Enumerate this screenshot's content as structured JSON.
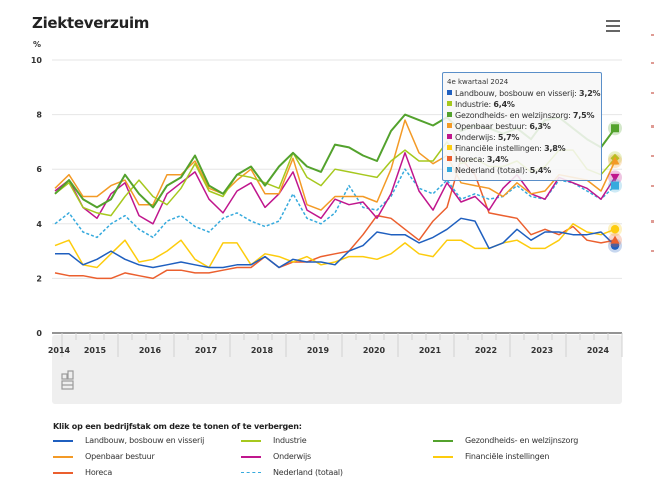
{
  "header": {
    "title": "Ziekteverzuim",
    "menu_icon": "hamburger-menu-icon"
  },
  "chart_data": {
    "type": "line",
    "title": "Ziekteverzuim",
    "ylabel": "%",
    "xlabel": "",
    "ylim": [
      0,
      10
    ],
    "yticks": [
      0,
      2,
      4,
      6,
      8,
      10
    ],
    "ytick_labels": [
      "0",
      "2",
      "4",
      "6",
      "8",
      "10"
    ],
    "xtick_labels": [
      "2014",
      "2015",
      "2016",
      "2017",
      "2018",
      "2019",
      "2020",
      "2021",
      "2022",
      "2023",
      "2024"
    ],
    "x_start": "2014 Q4",
    "x_end": "2024 Q4",
    "x_unit": "kwartaal",
    "grid": true,
    "navigator": true,
    "legend_position": "bottom",
    "series": [
      {
        "name": "Landbouw, bosbouw en visserij",
        "color": "#1f5fbf",
        "dashed": false,
        "marker": "circle",
        "values": [
          2.9,
          2.9,
          2.5,
          2.7,
          3.0,
          2.7,
          2.5,
          2.4,
          2.5,
          2.6,
          2.5,
          2.4,
          2.4,
          2.5,
          2.5,
          2.8,
          2.4,
          2.7,
          2.6,
          2.6,
          2.5,
          3.0,
          3.2,
          3.7,
          3.6,
          3.6,
          3.3,
          3.5,
          3.8,
          4.2,
          4.1,
          3.1,
          3.3,
          3.8,
          3.4,
          3.7,
          3.7,
          3.6,
          3.6,
          3.7,
          3.2
        ]
      },
      {
        "name": "Industrie",
        "color": "#a6c81e",
        "dashed": false,
        "marker": "diamond",
        "values": [
          5.1,
          5.5,
          4.6,
          4.4,
          4.3,
          5.0,
          5.6,
          5.0,
          4.7,
          5.3,
          6.2,
          5.2,
          5.0,
          5.8,
          5.7,
          5.5,
          5.3,
          6.6,
          5.7,
          5.4,
          6.0,
          5.9,
          5.8,
          5.7,
          6.3,
          6.7,
          6.3,
          6.3,
          7.0,
          6.2,
          6.4,
          6.1,
          6.1,
          6.3,
          5.9,
          6.1,
          6.7,
          6.7,
          6.0,
          5.8,
          6.4
        ]
      },
      {
        "name": "Gezondheids- en welzijnszorg",
        "color": "#53a22d",
        "dashed": false,
        "marker": "square",
        "values": [
          5.1,
          5.6,
          4.9,
          4.6,
          4.9,
          5.8,
          5.1,
          4.6,
          5.4,
          5.7,
          6.5,
          5.4,
          5.1,
          5.8,
          6.1,
          5.4,
          6.1,
          6.6,
          6.1,
          5.9,
          6.9,
          6.8,
          6.5,
          6.3,
          7.4,
          8.0,
          7.8,
          7.6,
          7.9,
          7.4,
          7.6,
          7.5,
          7.3,
          7.5,
          7.1,
          7.8,
          7.9,
          7.5,
          7.1,
          6.8,
          7.5
        ]
      },
      {
        "name": "Openbaar bestuur",
        "color": "#f39a26",
        "dashed": false,
        "marker": "triangle-up",
        "values": [
          5.3,
          5.8,
          5.0,
          5.0,
          5.4,
          5.6,
          4.7,
          4.7,
          5.8,
          5.8,
          6.3,
          5.3,
          5.1,
          5.6,
          6.0,
          5.1,
          5.1,
          6.4,
          4.7,
          4.5,
          5.0,
          5.0,
          5.0,
          4.8,
          6.0,
          7.8,
          6.6,
          6.2,
          6.5,
          5.5,
          5.4,
          5.3,
          5.0,
          5.5,
          5.1,
          5.2,
          5.8,
          5.7,
          5.6,
          5.2,
          6.3
        ]
      },
      {
        "name": "Onderwijs",
        "color": "#c0168d",
        "dashed": false,
        "marker": "triangle-down",
        "values": [
          5.2,
          5.6,
          4.6,
          4.2,
          5.1,
          5.5,
          4.3,
          4.0,
          5.1,
          5.5,
          5.9,
          4.9,
          4.4,
          5.2,
          5.5,
          4.6,
          5.1,
          5.9,
          4.5,
          4.2,
          4.9,
          4.7,
          4.8,
          4.2,
          5.1,
          6.6,
          5.2,
          4.5,
          5.5,
          4.8,
          5.0,
          4.5,
          5.3,
          5.8,
          5.1,
          4.9,
          5.7,
          5.5,
          5.3,
          4.9,
          5.7
        ]
      },
      {
        "name": "Financiële instellingen",
        "color": "#fdcc0d",
        "dashed": false,
        "marker": "circle",
        "values": [
          3.2,
          3.4,
          2.5,
          2.4,
          2.9,
          3.4,
          2.6,
          2.7,
          3.0,
          3.4,
          2.7,
          2.4,
          3.3,
          3.3,
          2.5,
          2.9,
          2.8,
          2.6,
          2.8,
          2.5,
          2.6,
          2.8,
          2.8,
          2.7,
          2.9,
          3.3,
          2.9,
          2.8,
          3.4,
          3.4,
          3.1,
          3.1,
          3.3,
          3.4,
          3.1,
          3.1,
          3.4,
          4.0,
          3.7,
          3.6,
          3.8
        ]
      },
      {
        "name": "Horeca",
        "color": "#eb5f2e",
        "dashed": false,
        "marker": "triangle-up",
        "values": [
          2.2,
          2.1,
          2.1,
          2.0,
          2.0,
          2.2,
          2.1,
          2.0,
          2.3,
          2.3,
          2.2,
          2.2,
          2.3,
          2.4,
          2.4,
          2.8,
          2.4,
          2.6,
          2.6,
          2.8,
          2.9,
          3.0,
          3.6,
          4.3,
          4.2,
          3.8,
          3.4,
          4.1,
          4.6,
          6.4,
          5.8,
          4.4,
          4.3,
          4.2,
          3.6,
          3.8,
          3.6,
          3.9,
          3.4,
          3.3,
          3.4
        ]
      },
      {
        "name": "Nederland (totaal)",
        "color": "#36aadd",
        "dashed": true,
        "marker": "square",
        "values": [
          4.0,
          4.4,
          3.7,
          3.5,
          4.0,
          4.3,
          3.8,
          3.5,
          4.1,
          4.3,
          3.9,
          3.7,
          4.2,
          4.4,
          4.1,
          3.9,
          4.1,
          5.1,
          4.2,
          4.0,
          4.4,
          5.4,
          4.6,
          4.5,
          5.0,
          6.0,
          5.3,
          5.1,
          5.6,
          4.9,
          5.1,
          4.9,
          5.0,
          5.4,
          5.0,
          4.9,
          5.6,
          5.5,
          5.2,
          4.9,
          5.4
        ]
      }
    ]
  },
  "tooltip": {
    "header": "4e kwartaal 2024",
    "rows": [
      {
        "label": "Landbouw, bosbouw en visserij",
        "value": "3,2%",
        "color": "#1f5fbf"
      },
      {
        "label": "Industrie",
        "value": "6,4%",
        "color": "#a6c81e"
      },
      {
        "label": "Gezondheids- en welzijnszorg",
        "value": "7,5%",
        "color": "#53a22d"
      },
      {
        "label": "Openbaar bestuur",
        "value": "6,3%",
        "color": "#f39a26"
      },
      {
        "label": "Onderwijs",
        "value": "5,7%",
        "color": "#c0168d"
      },
      {
        "label": "Financiële instellingen",
        "value": "3,8%",
        "color": "#fdcc0d"
      },
      {
        "label": "Horeca",
        "value": "3,4%",
        "color": "#eb5f2e"
      },
      {
        "label": "Nederland (totaal)",
        "value": "5,4%",
        "color": "#36aadd"
      }
    ]
  },
  "legend": {
    "title": "Klik op een bedrijfstak om deze te tonen of te verbergen:",
    "items": [
      {
        "label": "Landbouw, bosbouw en visserij",
        "color": "#1f5fbf",
        "dashed": false
      },
      {
        "label": "Industrie",
        "color": "#a6c81e",
        "dashed": false
      },
      {
        "label": "Gezondheids- en welzijnszorg",
        "color": "#53a22d",
        "dashed": false
      },
      {
        "label": "Openbaar bestuur",
        "color": "#f39a26",
        "dashed": false
      },
      {
        "label": "Onderwijs",
        "color": "#c0168d",
        "dashed": false
      },
      {
        "label": "Financiële instellingen",
        "color": "#fdcc0d",
        "dashed": false
      },
      {
        "label": "Horeca",
        "color": "#eb5f2e",
        "dashed": false
      },
      {
        "label": "Nederland (totaal)",
        "color": "#36aadd",
        "dashed": true
      }
    ]
  },
  "navigator": {
    "logo_icon": "cbs-logo-icon"
  }
}
